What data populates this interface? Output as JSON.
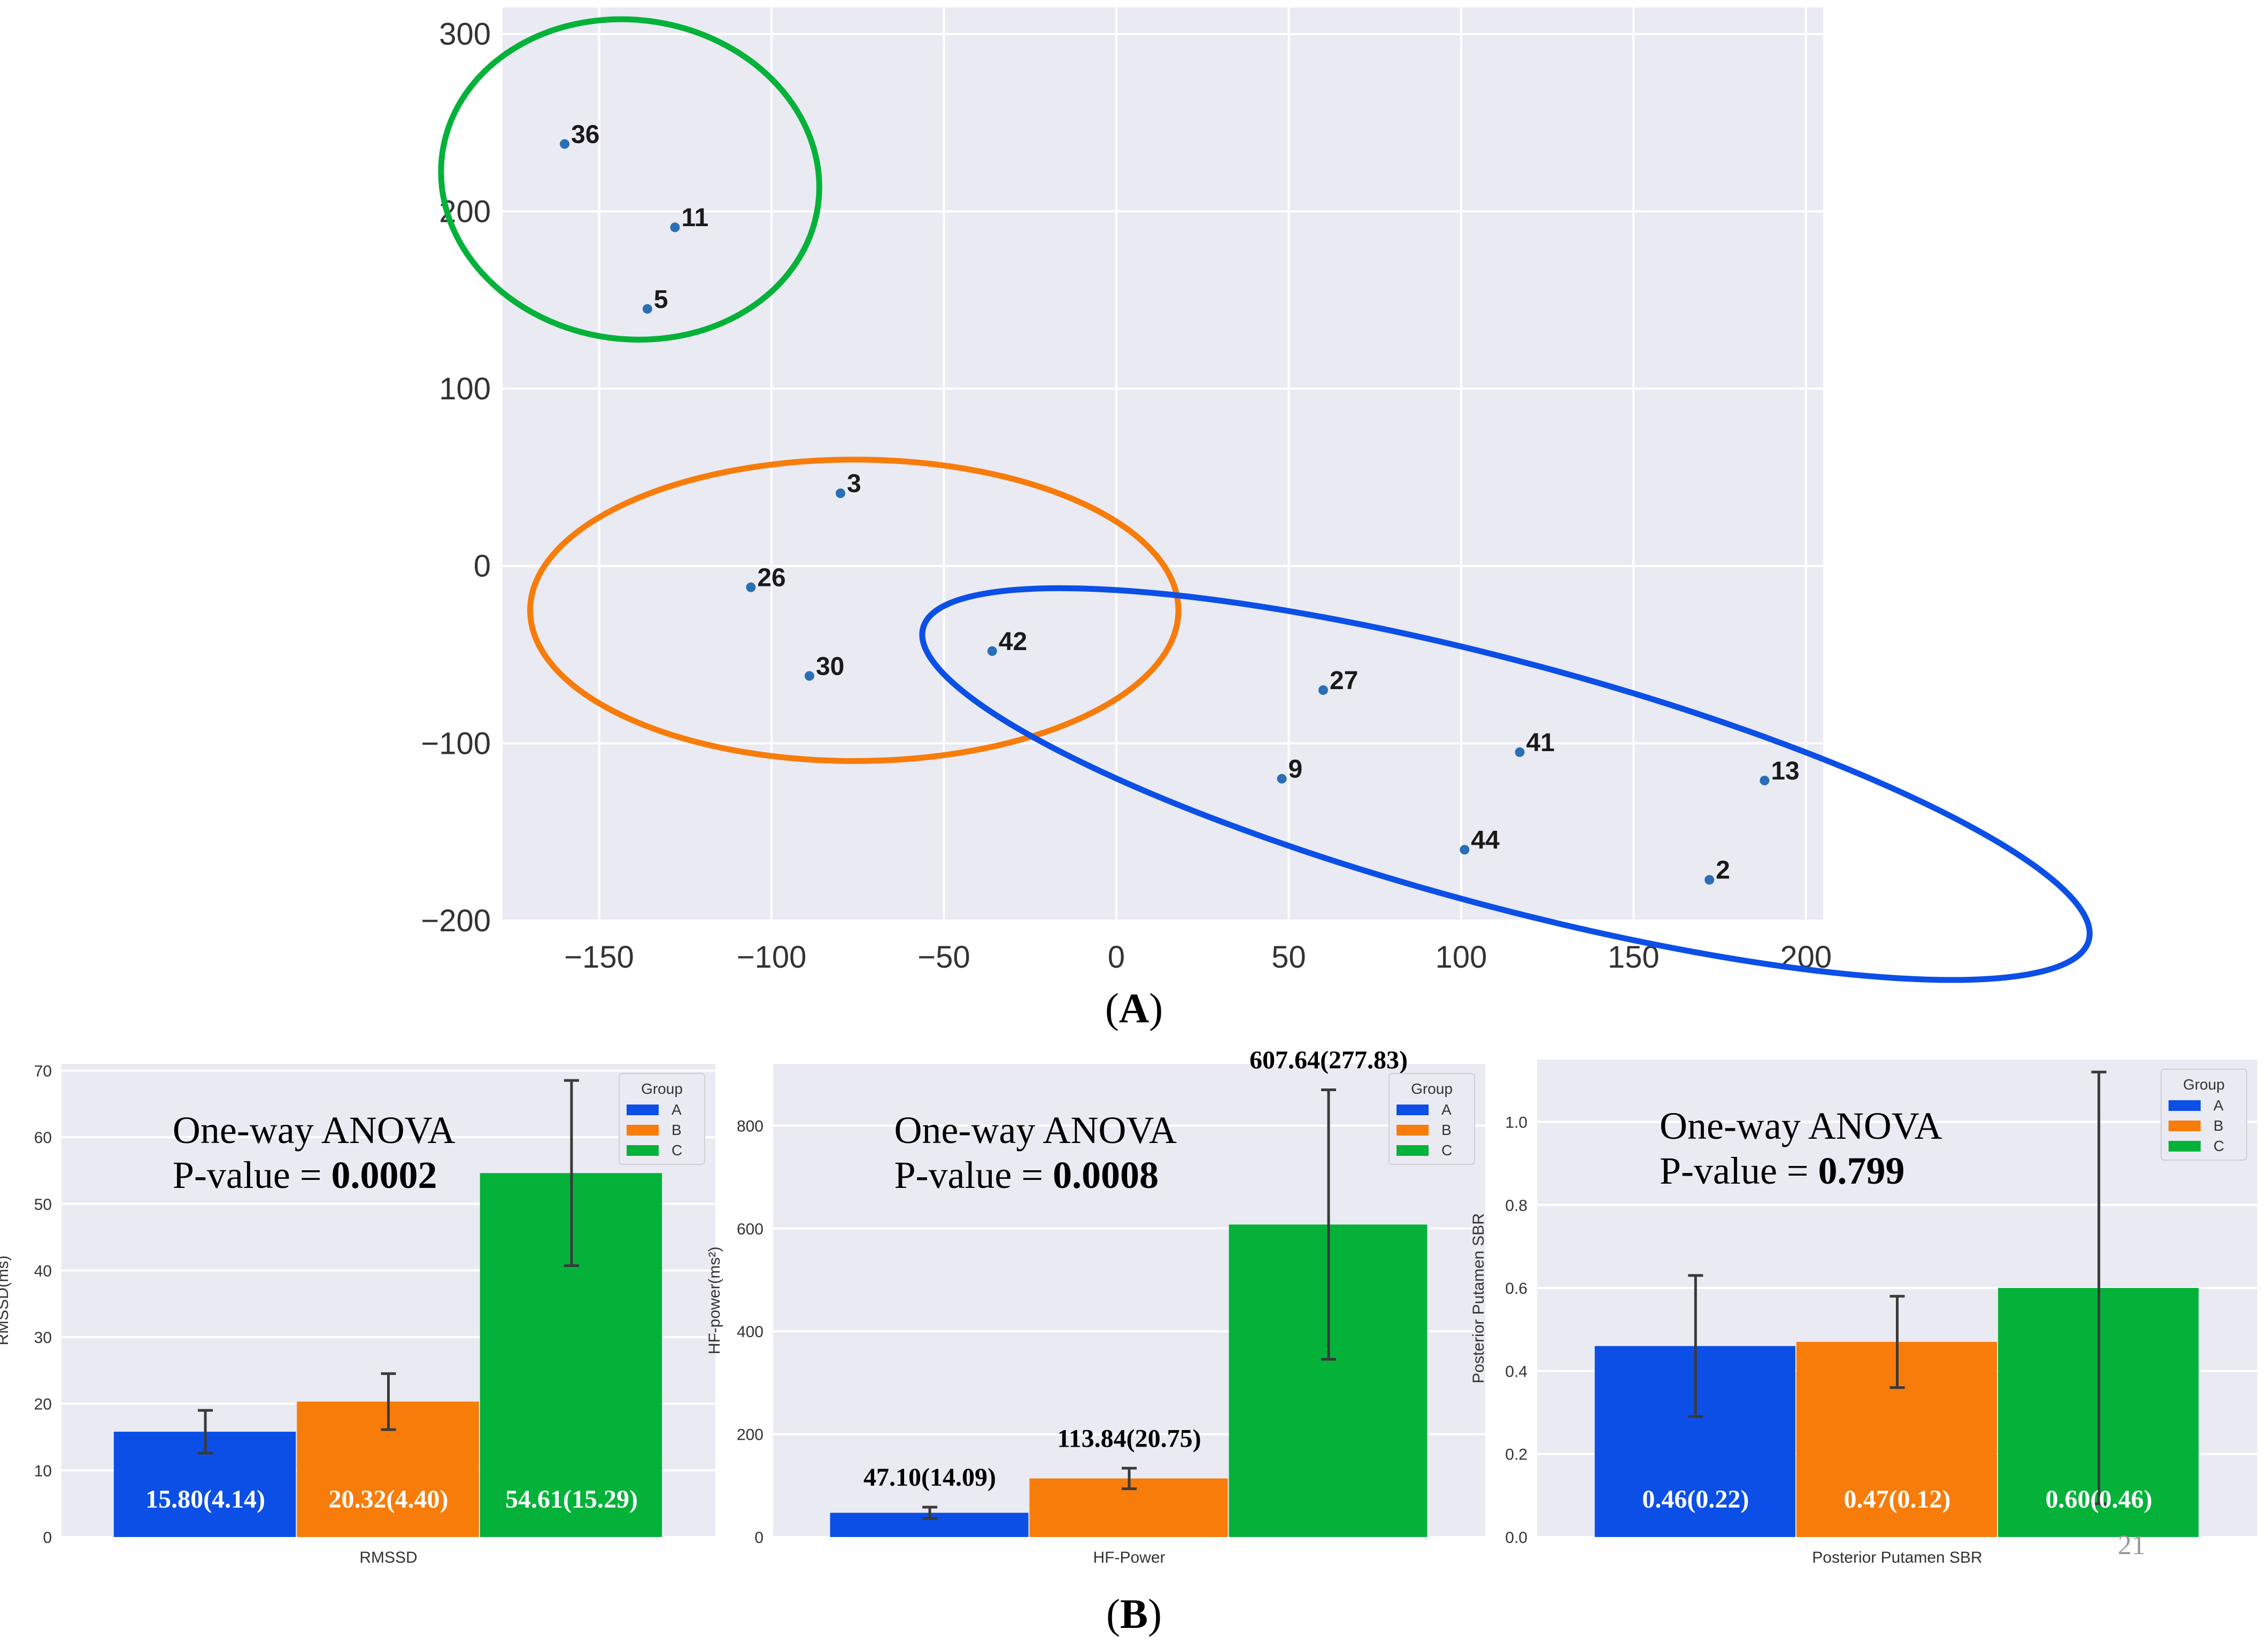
{
  "figure": {
    "label_a": "A",
    "label_b": "B",
    "page_number": "21",
    "colors": {
      "A": "#0b4fe6",
      "B": "#f77c0a",
      "C": "#04b23a",
      "plot_bg": "#eaeaf2",
      "grid": "#ffffff",
      "point": "#2a6fb5",
      "error": "#3a3a3a"
    }
  },
  "chart_data": [
    {
      "id": "tsne",
      "type": "scatter",
      "title": "",
      "xlabel": "",
      "ylabel": "",
      "xlim": [
        -178,
        205
      ],
      "ylim": [
        -200,
        315
      ],
      "xticks": [
        -150,
        -100,
        -50,
        0,
        50,
        100,
        150,
        200
      ],
      "yticks": [
        300,
        200,
        100,
        0,
        -100,
        -200
      ],
      "points": [
        {
          "label": "36",
          "x": -160,
          "y": 238,
          "group": "C"
        },
        {
          "label": "11",
          "x": -128,
          "y": 191,
          "group": "C"
        },
        {
          "label": "5",
          "x": -136,
          "y": 145,
          "group": "C"
        },
        {
          "label": "3",
          "x": -80,
          "y": 41,
          "group": "B"
        },
        {
          "label": "26",
          "x": -106,
          "y": -12,
          "group": "B"
        },
        {
          "label": "30",
          "x": -89,
          "y": -62,
          "group": "B"
        },
        {
          "label": "42",
          "x": -36,
          "y": -48,
          "group": "B"
        },
        {
          "label": "27",
          "x": 60,
          "y": -70,
          "group": "A"
        },
        {
          "label": "41",
          "x": 117,
          "y": -105,
          "group": "A"
        },
        {
          "label": "9",
          "x": 48,
          "y": -120,
          "group": "A"
        },
        {
          "label": "13",
          "x": 188,
          "y": -121,
          "group": "A"
        },
        {
          "label": "44",
          "x": 101,
          "y": -160,
          "group": "A"
        },
        {
          "label": "2",
          "x": 172,
          "y": -177,
          "group": "A"
        }
      ],
      "clusters": [
        {
          "group": "C",
          "cx": -141,
          "cy": 218,
          "rx": 55,
          "ry": 90,
          "rotate": 8
        },
        {
          "group": "B",
          "cx": -76,
          "cy": -25,
          "rx": 94,
          "ry": 85,
          "rotate": 0
        },
        {
          "group": "A",
          "cx": 113,
          "cy": -123,
          "rx": 175,
          "ry": 69,
          "rotate": 15
        }
      ]
    },
    {
      "id": "rmssd",
      "type": "bar",
      "xlabel": "RMSSD",
      "ylabel": "RMSSD(ms)",
      "ylim": [
        0,
        71
      ],
      "yticks": [
        0,
        10,
        20,
        30,
        40,
        50,
        60,
        70
      ],
      "yticklabels": [
        "0",
        "10",
        "20",
        "30",
        "40",
        "50",
        "60",
        "70"
      ],
      "legend_title": "Group",
      "legend_position": "top-right",
      "categories": [
        "A",
        "B",
        "C"
      ],
      "values": [
        15.8,
        20.32,
        54.61
      ],
      "errors": [
        3.2,
        4.2,
        13.9
      ],
      "bar_labels": [
        "15.80(4.14)",
        "20.32(4.40)",
        "54.61(15.29)"
      ],
      "bar_label_color": "#ffffff",
      "bar_label_inside": true,
      "stat_line1": "One-way ANOVA",
      "stat_prefix": "P-value = ",
      "stat_value": "0.0002"
    },
    {
      "id": "hfpower",
      "type": "bar",
      "xlabel": "HF-Power",
      "ylabel": "HF-power(ms²)",
      "ylim": [
        0,
        920
      ],
      "yticks": [
        0,
        200,
        400,
        600,
        800
      ],
      "yticklabels": [
        "0",
        "200",
        "400",
        "600",
        "800"
      ],
      "legend_title": "Group",
      "legend_position": "top-right",
      "categories": [
        "A",
        "B",
        "C"
      ],
      "values": [
        47.1,
        113.84,
        607.64
      ],
      "errors": [
        11,
        20,
        262
      ],
      "bar_labels": [
        "47.10(14.09)",
        "113.84(20.75)",
        "607.64(277.83)"
      ],
      "bar_label_color": "#000000",
      "bar_label_inside": false,
      "stat_line1": "One-way ANOVA",
      "stat_prefix": "P-value = ",
      "stat_value": "0.0008"
    },
    {
      "id": "sbr",
      "type": "bar",
      "xlabel": "Posterior Putamen SBR",
      "ylabel": "Posterior Putamen SBR",
      "ylim": [
        0,
        1.15
      ],
      "yticks": [
        0,
        0.2,
        0.4,
        0.6,
        0.8,
        1.0
      ],
      "yticklabels": [
        "0.0",
        "0.2",
        "0.4",
        "0.6",
        "0.8",
        "1.0"
      ],
      "legend_title": "Group",
      "legend_position": "top-right",
      "categories": [
        "A",
        "B",
        "C"
      ],
      "values": [
        0.46,
        0.47,
        0.6
      ],
      "errors": [
        0.17,
        0.11,
        0.52
      ],
      "bar_labels": [
        "0.46(0.22)",
        "0.47(0.12)",
        "0.60(0.46)"
      ],
      "bar_label_color": "#ffffff",
      "bar_label_inside": true,
      "stat_line1": "One-way ANOVA",
      "stat_prefix": "P-value = ",
      "stat_value": "0.799"
    }
  ]
}
